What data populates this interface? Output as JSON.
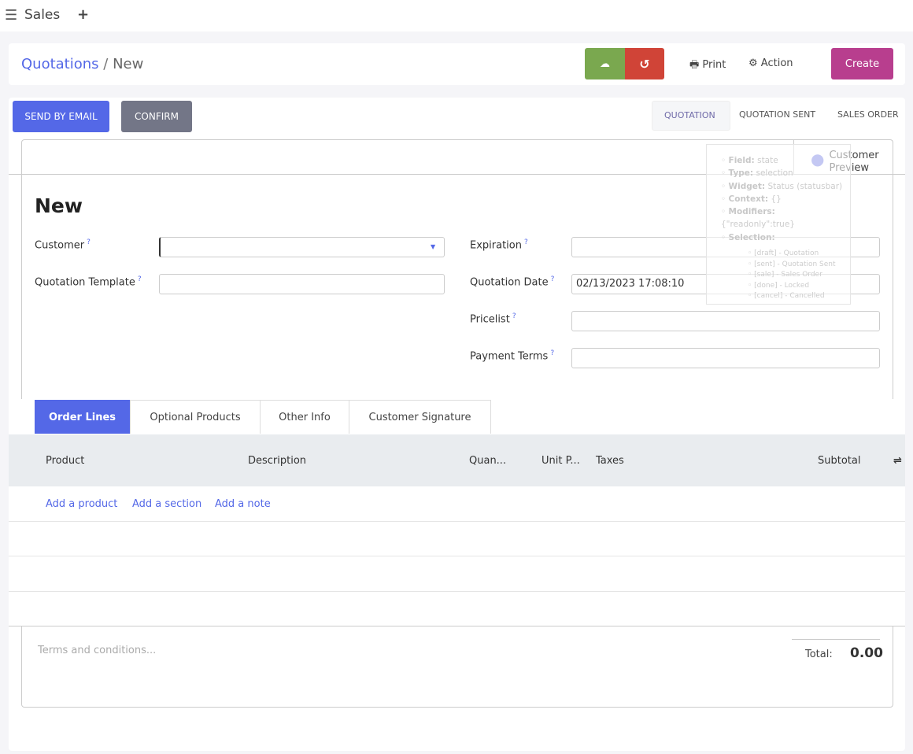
{
  "app": {
    "title": "Sales"
  },
  "breadcrumb": {
    "parent": "Quotations",
    "separator": "/",
    "current": "New"
  },
  "toolbar": {
    "print": "Print",
    "action": "Action",
    "create": "Create"
  },
  "actions": {
    "send_email": "SEND BY EMAIL",
    "confirm": "CONFIRM"
  },
  "statusbar": [
    {
      "label": "QUOTATION",
      "active": true
    },
    {
      "label": "QUOTATION SENT"
    },
    {
      "label": "SALES ORDER"
    }
  ],
  "customer_preview": {
    "line1": "Customer",
    "line2": "Preview"
  },
  "tooltip": {
    "field": [
      "Field:",
      "state"
    ],
    "type": [
      "Type:",
      "selection"
    ],
    "widget": [
      "Widget:",
      "Status (statusbar)"
    ],
    "context": [
      "Context:",
      "{}"
    ],
    "modifiers": [
      "Modifiers:",
      "{\"readonly\":true}"
    ],
    "selection": "Selection:",
    "options": [
      "[draft] - Quotation",
      "[sent] - Quotation Sent",
      "[sale] - Sales Order",
      "[done] - Locked",
      "[cancel] - Cancelled"
    ]
  },
  "form": {
    "title": "New",
    "customer": {
      "label": "Customer",
      "value": ""
    },
    "template": {
      "label": "Quotation Template",
      "value": ""
    },
    "expiration": {
      "label": "Expiration",
      "value": ""
    },
    "quotation_date": {
      "label": "Quotation Date",
      "value": "02/13/2023 17:08:10"
    },
    "pricelist": {
      "label": "Pricelist",
      "value": ""
    },
    "payment_terms": {
      "label": "Payment Terms",
      "value": ""
    },
    "help": "?"
  },
  "tabs": [
    {
      "label": "Order Lines",
      "active": true
    },
    {
      "label": "Optional Products"
    },
    {
      "label": "Other Info"
    },
    {
      "label": "Customer Signature"
    }
  ],
  "table": {
    "columns": [
      "Product",
      "Description",
      "Quan...",
      "Unit P...",
      "Taxes",
      "Subtotal"
    ],
    "add_product": "Add a product",
    "add_section": "Add a section",
    "add_note": "Add a note"
  },
  "footer": {
    "terms_placeholder": "Terms and conditions...",
    "total_label": "Total:",
    "total_value": "0.00"
  },
  "colors": {
    "primary": "#5468e7",
    "secondary": "#737687",
    "save": "#7aa84f",
    "discard": "#d04437",
    "create": "#b83e8e"
  }
}
